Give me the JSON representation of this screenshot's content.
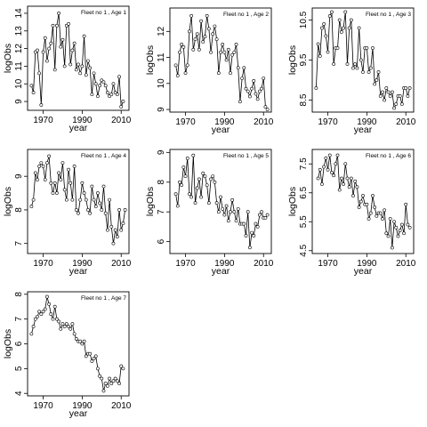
{
  "chart_data": [
    {
      "type": "line",
      "title": "Fleet no 1 , Age 1",
      "xlabel": "year",
      "ylabel": "logObs",
      "xlim": [
        1962,
        2014
      ],
      "ylim": [
        8.5,
        14.4
      ],
      "xticks": [
        1970,
        1990,
        2010
      ],
      "yticks": [
        9,
        10,
        11,
        12,
        13,
        14
      ],
      "grid": false,
      "series": [
        {
          "x": [
            1964,
            1965,
            1966,
            1967,
            1968,
            1969,
            1970,
            1971,
            1972,
            1973,
            1974,
            1975,
            1976,
            1977,
            1978,
            1979,
            1980,
            1981,
            1982,
            1983,
            1984,
            1985,
            1986,
            1987,
            1988,
            1989,
            1990,
            1991,
            1992,
            1993,
            1994,
            1995,
            1996,
            1997,
            1998,
            1999,
            2000,
            2001,
            2002,
            2003,
            2004,
            2005,
            2006,
            2007,
            2008,
            2009,
            2010,
            2011
          ],
          "y": [
            9.9,
            9.5,
            11.8,
            11.9,
            10.6,
            8.8,
            11.8,
            12.6,
            11.3,
            12.0,
            12.3,
            13.3,
            10.8,
            13.3,
            14.0,
            12.1,
            12.5,
            11.0,
            13.3,
            13.4,
            11.1,
            11.9,
            12.3,
            10.8,
            11.1,
            10.6,
            11.0,
            12.7,
            10.5,
            11.3,
            10.9,
            9.4,
            10.6,
            10.0,
            9.3,
            9.9,
            10.2,
            10.1,
            9.9,
            9.5,
            9.3,
            9.4,
            10.0,
            9.5,
            9.4,
            10.4,
            8.7,
            9.0
          ]
        }
      ]
    },
    {
      "type": "line",
      "title": "Fleet no 1 , Age 2",
      "xlabel": "year",
      "ylabel": "logObs",
      "xlim": [
        1962,
        2014
      ],
      "ylim": [
        8.9,
        12.9
      ],
      "xticks": [
        1970,
        1990,
        2010
      ],
      "yticks": [
        9.0,
        10.0,
        11.0,
        12.0
      ],
      "grid": false,
      "series": [
        {
          "x": [
            1965,
            1966,
            1967,
            1968,
            1969,
            1970,
            1971,
            1972,
            1973,
            1974,
            1975,
            1976,
            1977,
            1978,
            1979,
            1980,
            1981,
            1982,
            1983,
            1984,
            1985,
            1986,
            1987,
            1988,
            1989,
            1990,
            1991,
            1992,
            1993,
            1994,
            1995,
            1996,
            1997,
            1998,
            1999,
            2000,
            2001,
            2002,
            2003,
            2004,
            2005,
            2006,
            2007,
            2008,
            2009,
            2010,
            2011,
            2012
          ],
          "y": [
            10.7,
            10.3,
            11.2,
            11.5,
            11.4,
            10.4,
            10.7,
            12.0,
            12.6,
            11.3,
            11.7,
            11.9,
            11.3,
            12.4,
            11.6,
            11.8,
            12.6,
            12.1,
            11.2,
            11.9,
            12.2,
            11.7,
            10.4,
            11.2,
            11.5,
            11.2,
            10.9,
            11.3,
            10.4,
            11.1,
            11.2,
            11.5,
            10.6,
            9.3,
            10.2,
            10.6,
            9.8,
            9.7,
            9.5,
            9.8,
            10.1,
            9.6,
            9.4,
            9.7,
            9.8,
            10.2,
            9.1,
            9.0
          ]
        }
      ]
    },
    {
      "type": "line",
      "title": "Fleet no 1 , Age 3",
      "xlabel": "year",
      "ylabel": "logObs",
      "xlim": [
        1962,
        2014
      ],
      "ylim": [
        8.2,
        10.8
      ],
      "xticks": [
        1970,
        1990,
        2010
      ],
      "yticks": [
        8.5,
        9.5,
        10.5
      ],
      "grid": false,
      "series": [
        {
          "x": [
            1964,
            1965,
            1966,
            1967,
            1968,
            1969,
            1970,
            1971,
            1972,
            1973,
            1974,
            1975,
            1976,
            1977,
            1978,
            1979,
            1980,
            1981,
            1982,
            1983,
            1984,
            1985,
            1986,
            1987,
            1988,
            1989,
            1990,
            1991,
            1992,
            1993,
            1994,
            1995,
            1996,
            1997,
            1998,
            1999,
            2000,
            2001,
            2002,
            2003,
            2004,
            2005,
            2006,
            2007,
            2008,
            2009,
            2010,
            2011,
            2012
          ],
          "y": [
            8.8,
            9.9,
            9.6,
            10.3,
            10.4,
            10.1,
            9.7,
            10.6,
            10.7,
            9.4,
            9.8,
            9.8,
            10.5,
            10.2,
            10.3,
            10.7,
            9.4,
            10.3,
            10.5,
            9.3,
            9.4,
            9.3,
            10.3,
            9.5,
            9.2,
            9.8,
            9.8,
            9.2,
            9.3,
            9.8,
            8.9,
            9.0,
            9.2,
            8.6,
            8.7,
            8.5,
            8.8,
            8.7,
            8.6,
            8.7,
            8.3,
            8.4,
            8.6,
            8.6,
            8.4,
            8.8,
            8.8,
            8.6,
            8.8
          ]
        }
      ]
    },
    {
      "type": "line",
      "title": "Fleet no 1 , Age 4",
      "xlabel": "year",
      "ylabel": "logObs",
      "xlim": [
        1962,
        2014
      ],
      "ylim": [
        6.7,
        9.8
      ],
      "xticks": [
        1970,
        1990,
        2010
      ],
      "yticks": [
        7.0,
        8.0,
        9.0
      ],
      "grid": false,
      "series": [
        {
          "x": [
            1964,
            1965,
            1966,
            1967,
            1968,
            1969,
            1970,
            1971,
            1972,
            1973,
            1974,
            1975,
            1976,
            1977,
            1978,
            1979,
            1980,
            1981,
            1982,
            1983,
            1984,
            1985,
            1986,
            1987,
            1988,
            1989,
            1990,
            1991,
            1992,
            1993,
            1994,
            1995,
            1996,
            1997,
            1998,
            1999,
            2000,
            2001,
            2002,
            2003,
            2004,
            2005,
            2006,
            2007,
            2008,
            2009,
            2010,
            2011,
            2012
          ],
          "y": [
            8.1,
            8.3,
            9.1,
            8.9,
            9.3,
            9.4,
            9.3,
            8.9,
            9.4,
            9.6,
            8.8,
            8.5,
            8.8,
            8.5,
            9.1,
            8.9,
            9.4,
            8.6,
            8.3,
            9.2,
            8.8,
            8.3,
            9.3,
            8.0,
            7.9,
            8.3,
            8.8,
            8.5,
            8.3,
            8.0,
            7.9,
            8.7,
            8.3,
            8.1,
            8.5,
            8.2,
            8.0,
            8.7,
            7.9,
            7.4,
            8.3,
            7.5,
            7.0,
            7.4,
            7.2,
            8.0,
            7.4,
            7.6,
            8.0
          ]
        }
      ]
    },
    {
      "type": "line",
      "title": "Fleet no 1 , Age 5",
      "xlabel": "year",
      "ylabel": "logObs",
      "xlim": [
        1962,
        2014
      ],
      "ylim": [
        5.6,
        9.1
      ],
      "xticks": [
        1970,
        1990,
        2010
      ],
      "yticks": [
        6.0,
        7.0,
        8.0,
        9.0
      ],
      "grid": false,
      "series": [
        {
          "x": [
            1965,
            1966,
            1967,
            1968,
            1969,
            1970,
            1971,
            1972,
            1973,
            1974,
            1975,
            1976,
            1977,
            1978,
            1979,
            1980,
            1981,
            1982,
            1983,
            1984,
            1985,
            1986,
            1987,
            1988,
            1989,
            1990,
            1991,
            1992,
            1993,
            1994,
            1995,
            1996,
            1997,
            1998,
            1999,
            2000,
            2001,
            2002,
            2003,
            2004,
            2005,
            2006,
            2007,
            2008,
            2009,
            2010,
            2011,
            2012
          ],
          "y": [
            7.6,
            7.2,
            8.0,
            7.9,
            8.5,
            8.2,
            8.8,
            7.6,
            7.5,
            8.9,
            7.3,
            7.8,
            8.1,
            7.5,
            8.3,
            8.2,
            7.9,
            7.3,
            8.1,
            8.2,
            8.0,
            7.3,
            7.0,
            7.5,
            7.1,
            6.9,
            7.2,
            6.7,
            7.0,
            7.4,
            7.0,
            6.7,
            7.1,
            6.6,
            6.6,
            6.6,
            6.2,
            7.0,
            5.8,
            6.3,
            6.2,
            6.6,
            6.5,
            6.9,
            7.0,
            6.8,
            6.8,
            6.9
          ]
        }
      ]
    },
    {
      "type": "line",
      "title": "Fleet no 1 , Age 6",
      "xlabel": "year",
      "ylabel": "logObs",
      "xlim": [
        1962,
        2014
      ],
      "ylim": [
        4.4,
        8.0
      ],
      "xticks": [
        1970,
        1990,
        2010
      ],
      "yticks": [
        4.5,
        5.5,
        6.5,
        7.5
      ],
      "grid": false,
      "series": [
        {
          "x": [
            1965,
            1966,
            1967,
            1968,
            1969,
            1970,
            1971,
            1972,
            1973,
            1974,
            1975,
            1976,
            1977,
            1978,
            1979,
            1980,
            1981,
            1982,
            1983,
            1984,
            1985,
            1986,
            1987,
            1988,
            1989,
            1990,
            1991,
            1992,
            1993,
            1994,
            1995,
            1996,
            1997,
            1998,
            1999,
            2000,
            2001,
            2002,
            2003,
            2004,
            2005,
            2006,
            2007,
            2008,
            2009,
            2010,
            2011,
            2012
          ],
          "y": [
            7.0,
            7.3,
            6.8,
            7.4,
            7.7,
            7.3,
            7.8,
            7.2,
            7.1,
            7.5,
            7.8,
            6.6,
            7.0,
            6.8,
            7.5,
            7.0,
            6.7,
            7.0,
            6.4,
            6.9,
            6.7,
            6.0,
            6.2,
            6.4,
            6.1,
            6.1,
            5.6,
            5.8,
            6.4,
            6.0,
            5.7,
            5.8,
            5.8,
            5.6,
            5.9,
            5.1,
            5.0,
            5.6,
            4.6,
            5.5,
            5.3,
            5.0,
            5.2,
            5.4,
            5.1,
            6.1,
            5.4,
            5.3
          ]
        }
      ]
    },
    {
      "type": "line",
      "title": "Fleet no 1 , Age 7",
      "xlabel": "year",
      "ylabel": "logObs",
      "xlim": [
        1962,
        2014
      ],
      "ylim": [
        3.9,
        8.1
      ],
      "xticks": [
        1970,
        1990,
        2010
      ],
      "yticks": [
        4,
        5,
        6,
        7,
        8
      ],
      "grid": false,
      "series": [
        {
          "x": [
            1964,
            1965,
            1966,
            1967,
            1968,
            1969,
            1970,
            1971,
            1972,
            1973,
            1974,
            1975,
            1976,
            1977,
            1978,
            1979,
            1980,
            1981,
            1982,
            1983,
            1984,
            1985,
            1986,
            1987,
            1988,
            1989,
            1990,
            1991,
            1992,
            1993,
            1994,
            1995,
            1996,
            1997,
            1998,
            1999,
            2000,
            2001,
            2002,
            2003,
            2004,
            2005,
            2006,
            2007,
            2008,
            2009,
            2010,
            2011
          ],
          "y": [
            6.4,
            6.7,
            7.0,
            7.1,
            7.3,
            7.2,
            7.3,
            7.4,
            7.9,
            7.6,
            7.2,
            7.0,
            7.5,
            7.0,
            6.9,
            6.6,
            6.8,
            6.7,
            6.8,
            6.7,
            6.6,
            6.8,
            6.4,
            6.2,
            6.1,
            6.1,
            6.0,
            6.1,
            5.5,
            5.6,
            5.6,
            5.3,
            5.4,
            5.5,
            5.0,
            4.7,
            4.6,
            4.1,
            4.4,
            4.3,
            4.6,
            4.4,
            4.5,
            4.6,
            4.5,
            4.4,
            5.1,
            5.0
          ]
        }
      ]
    }
  ]
}
